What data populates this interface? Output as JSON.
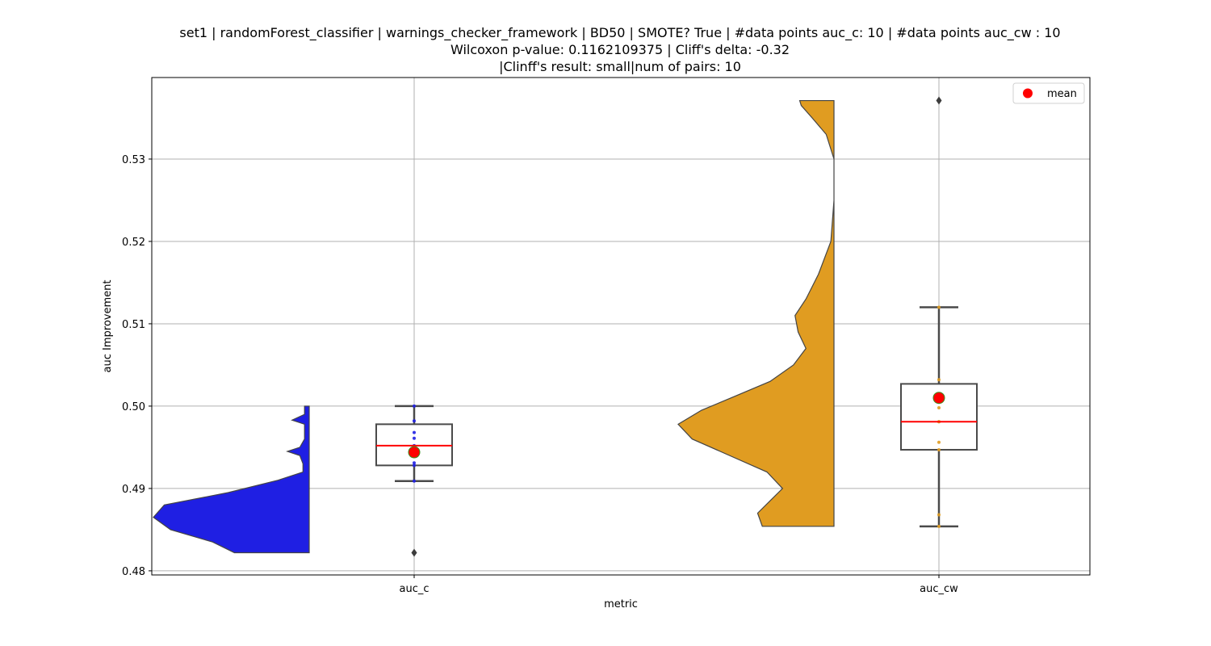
{
  "chart_data": {
    "type": "box",
    "title_lines": [
      "set1 | randomForest_classifier | warnings_checker_framework | BD50 | SMOTE? True | #data points auc_c: 10 | #data points auc_cw : 10",
      "Wilcoxon p-value: 0.1162109375 | Cliff's delta: -0.32",
      "|Clinff's result: small|num of pairs: 10"
    ],
    "xlabel": "metric",
    "ylabel": "auc Improvement",
    "ylim": [
      0.4795,
      0.5399
    ],
    "yticks": [
      0.48,
      0.49,
      0.5,
      0.51,
      0.52,
      0.53
    ],
    "ytick_labels": [
      "0.48",
      "0.49",
      "0.50",
      "0.51",
      "0.52",
      "0.53"
    ],
    "categories": [
      "auc_c",
      "auc_cw"
    ],
    "grid": true,
    "legend": {
      "position": "top-right",
      "label": "mean",
      "marker_color": "#ff0000"
    },
    "colors": {
      "auc_c_violin": "#1f1fe3",
      "auc_cw_violin": "#e09c21",
      "median_line": "#ff0000",
      "mean_marker": "#ff0000",
      "mean_edge": "#3c8c1e",
      "box_edge": "#4a4a4a",
      "grid": "#b0b0b0"
    },
    "series": [
      {
        "category": "auc_c",
        "box": {
          "whisker_low": 0.4909,
          "q1": 0.4928,
          "median": 0.4952,
          "q3": 0.4978,
          "whisker_high": 0.5
        },
        "mean": 0.4944,
        "outliers": [
          0.4822
        ],
        "points": [
          0.5,
          0.4982,
          0.4968,
          0.4961,
          0.4952,
          0.4944,
          0.4931,
          0.4928,
          0.4909,
          0.4822
        ],
        "point_color": "#1f1fe3",
        "violin_range": [
          0.4822,
          0.5
        ],
        "violin_profile": [
          [
            0.4822,
            0.48
          ],
          [
            0.4835,
            0.62
          ],
          [
            0.485,
            0.89
          ],
          [
            0.4865,
            1.0
          ],
          [
            0.488,
            0.93
          ],
          [
            0.4895,
            0.52
          ],
          [
            0.491,
            0.2
          ],
          [
            0.492,
            0.04
          ],
          [
            0.493,
            0.04
          ],
          [
            0.494,
            0.06
          ],
          [
            0.4945,
            0.14
          ],
          [
            0.495,
            0.06
          ],
          [
            0.496,
            0.03
          ],
          [
            0.497,
            0.03
          ],
          [
            0.4978,
            0.03
          ],
          [
            0.4983,
            0.11
          ],
          [
            0.499,
            0.03
          ],
          [
            0.5,
            0.03
          ]
        ]
      },
      {
        "category": "auc_cw",
        "box": {
          "whisker_low": 0.4854,
          "q1": 0.4947,
          "median": 0.4981,
          "q3": 0.5027,
          "whisker_high": 0.512
        },
        "mean": 0.501,
        "outliers": [
          0.5371
        ],
        "points": [
          0.512,
          0.5032,
          0.501,
          0.4998,
          0.4981,
          0.4981,
          0.4956,
          0.4947,
          0.4868,
          0.4854
        ],
        "point_color": "#e09c21",
        "violin_range": [
          0.4854,
          0.5371
        ],
        "violin_profile": [
          [
            0.4854,
            0.46
          ],
          [
            0.487,
            0.49
          ],
          [
            0.4885,
            0.41
          ],
          [
            0.49,
            0.33
          ],
          [
            0.492,
            0.43
          ],
          [
            0.494,
            0.67
          ],
          [
            0.496,
            0.91
          ],
          [
            0.4978,
            1.0
          ],
          [
            0.4995,
            0.85
          ],
          [
            0.501,
            0.66
          ],
          [
            0.503,
            0.41
          ],
          [
            0.505,
            0.26
          ],
          [
            0.507,
            0.18
          ],
          [
            0.509,
            0.23
          ],
          [
            0.511,
            0.25
          ],
          [
            0.513,
            0.18
          ],
          [
            0.516,
            0.1
          ],
          [
            0.52,
            0.02
          ],
          [
            0.525,
            0.0
          ],
          [
            0.53,
            0.0
          ],
          [
            0.533,
            0.05
          ],
          [
            0.535,
            0.14
          ],
          [
            0.5365,
            0.21
          ],
          [
            0.5371,
            0.22
          ]
        ]
      }
    ]
  }
}
